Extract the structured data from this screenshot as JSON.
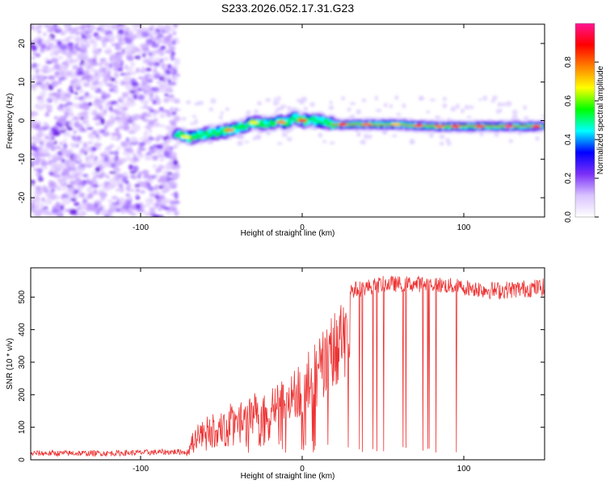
{
  "title": "S233.2026.052.17.31.G23",
  "chart_data": [
    {
      "type": "heatmap",
      "title": "S233.2026.052.17.31.G23",
      "xlabel": "Height of straight line (km)",
      "ylabel": "Frequency (Hz)",
      "xlim": [
        -168,
        150
      ],
      "ylim": [
        -25,
        25
      ],
      "x_ticks": [
        -100,
        0,
        100
      ],
      "y_ticks": [
        -20,
        -10,
        0,
        10,
        20
      ],
      "noise_region_x": [
        -168,
        -77
      ],
      "tone_track": {
        "x": [
          -78,
          -70,
          -60,
          -50,
          -40,
          -30,
          -20,
          -15,
          -10,
          -5,
          0,
          10,
          20,
          40,
          60,
          80,
          100,
          120,
          148
        ],
        "freq_hz": [
          -3.5,
          -4.5,
          -3.5,
          -3,
          -2,
          -0.5,
          -0.8,
          0,
          -1,
          1,
          0,
          0,
          -1,
          -1,
          -1,
          -1.5,
          -1.5,
          -1.5,
          -1.5
        ]
      },
      "colorbar": {
        "label": "Normalized spectral amplitude",
        "range": [
          0,
          1
        ],
        "ticks": [
          "0.0",
          "0.2",
          "0.4",
          "0.6",
          "0.8"
        ],
        "colors": [
          "#ffffff",
          "#d9c2ff",
          "#7b2ff7",
          "#0000ff",
          "#00ffff",
          "#00ff00",
          "#ffff00",
          "#ff8000",
          "#ff0000",
          "#ff1493"
        ]
      }
    },
    {
      "type": "line",
      "xlabel": "Height of straight line (km)",
      "ylabel": "SNR (10 * v/v)",
      "xlim": [
        -168,
        150
      ],
      "ylim": [
        0,
        590
      ],
      "x_ticks": [
        -100,
        0,
        100
      ],
      "y_ticks": [
        0,
        100,
        200,
        300,
        400,
        500
      ],
      "series": [
        {
          "name": "SNR",
          "color": "#ee3333",
          "x": [
            -168,
            -120,
            -72,
            -65,
            -50,
            -40,
            -30,
            -20,
            -10,
            0,
            10,
            20,
            30,
            50,
            80,
            100,
            120,
            150
          ],
          "values": [
            20,
            20,
            25,
            120,
            160,
            180,
            200,
            230,
            250,
            300,
            380,
            470,
            520,
            540,
            540,
            530,
            520,
            530
          ]
        }
      ]
    }
  ]
}
